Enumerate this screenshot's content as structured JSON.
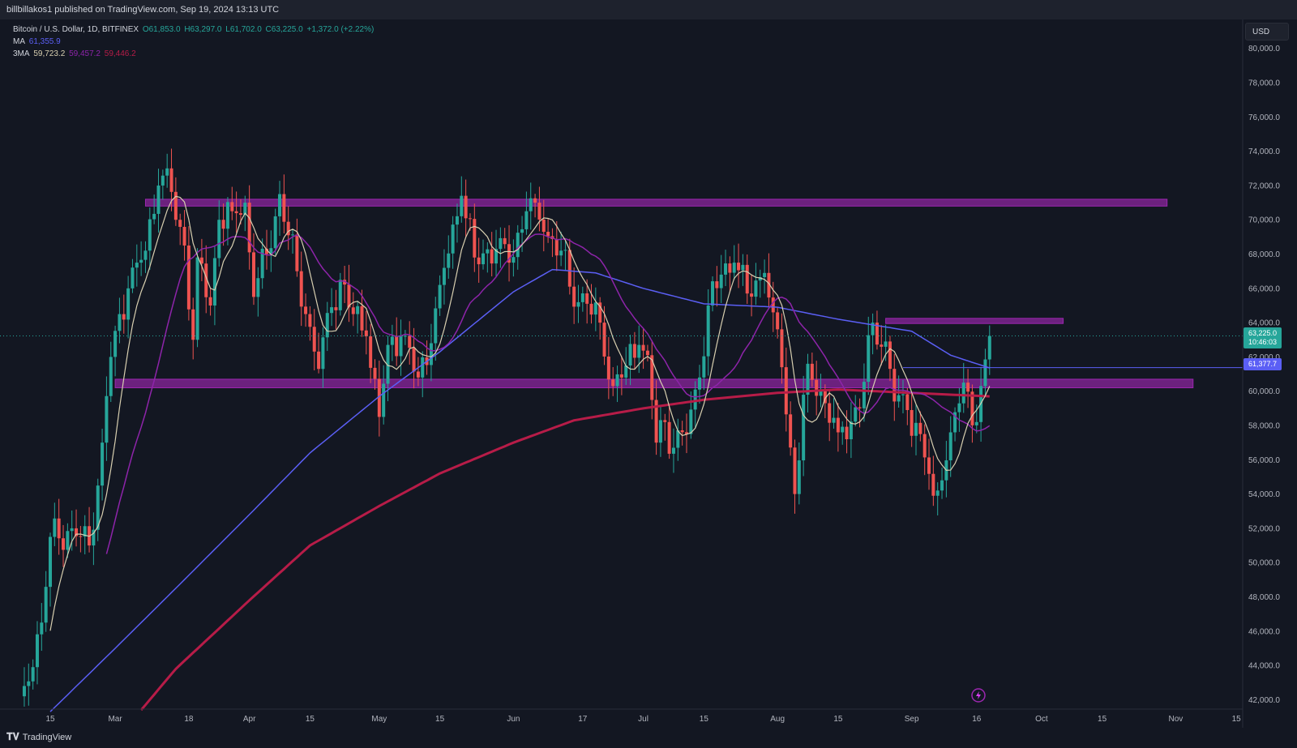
{
  "header": {
    "published": "billbillakos1 published on TradingView.com, Sep 19, 2024 13:13 UTC"
  },
  "legend": {
    "symbol": "Bitcoin / U.S. Dollar, 1D, BITFINEX",
    "o": "O61,853.0",
    "h": "H63,297.0",
    "l": "L61,702.0",
    "c": "C63,225.0",
    "change": "+1,372.0 (+2.22%)",
    "ma_label": "MA",
    "ma_value": "61,355.9",
    "ma3_label": "3MA",
    "ma3_v1": "59,723.2",
    "ma3_v2": "59,457.2",
    "ma3_v3": "59,446.2"
  },
  "axis": {
    "currency": "USD"
  },
  "price_tags": {
    "last": "63,225.0",
    "countdown": "10:46:03",
    "level": "61,377.7"
  },
  "brand": {
    "name": "TradingView"
  },
  "colors": {
    "bg": "#131722",
    "up": "#26a69a",
    "down": "#ef5350",
    "zone": "#9c27b0",
    "ma": "#5b5ff5",
    "ma_fast": "#d8cfb0",
    "ma_mid": "#8e24aa",
    "ma_slow": "#b71c48"
  },
  "chart_data": {
    "type": "candlestick",
    "title": "Bitcoin / U.S. Dollar, 1D, BITFINEX",
    "ylim": [
      41500,
      81500
    ],
    "y_ticks": [
      "42,000.0",
      "44,000.0",
      "46,000.0",
      "48,000.0",
      "50,000.0",
      "52,000.0",
      "54,000.0",
      "56,000.0",
      "58,000.0",
      "60,000.0",
      "62,000.0",
      "64,000.0",
      "66,000.0",
      "68,000.0",
      "70,000.0",
      "72,000.0",
      "74,000.0",
      "76,000.0",
      "78,000.0",
      "80,000.0"
    ],
    "x_ticks": [
      {
        "label": "15",
        "date": "2024-02-15"
      },
      {
        "label": "Mar",
        "date": "2024-03-01"
      },
      {
        "label": "18",
        "date": "2024-03-18"
      },
      {
        "label": "Apr",
        "date": "2024-04-01"
      },
      {
        "label": "15",
        "date": "2024-04-15"
      },
      {
        "label": "May",
        "date": "2024-05-01"
      },
      {
        "label": "15",
        "date": "2024-05-15"
      },
      {
        "label": "Jun",
        "date": "2024-06-01"
      },
      {
        "label": "17",
        "date": "2024-06-17"
      },
      {
        "label": "Jul",
        "date": "2024-07-01"
      },
      {
        "label": "15",
        "date": "2024-07-15"
      },
      {
        "label": "Aug",
        "date": "2024-08-01"
      },
      {
        "label": "15",
        "date": "2024-08-15"
      },
      {
        "label": "Sep",
        "date": "2024-09-01"
      },
      {
        "label": "16",
        "date": "2024-09-16"
      },
      {
        "label": "Oct",
        "date": "2024-10-01"
      },
      {
        "label": "15",
        "date": "2024-10-15"
      },
      {
        "label": "Nov",
        "date": "2024-11-01"
      },
      {
        "label": "15",
        "date": "2024-11-15"
      }
    ],
    "zones": [
      {
        "from": "2024-03-08",
        "to": "2024-10-30",
        "low": 70800,
        "high": 71200
      },
      {
        "from": "2024-03-01",
        "to": "2024-11-05",
        "low": 60200,
        "high": 60700
      },
      {
        "from": "2024-08-26",
        "to": "2024-10-06",
        "low": 63950,
        "high": 64250
      }
    ],
    "hlines": [
      {
        "from": "2024-08-30",
        "price": 61377.7
      }
    ],
    "close_anchors": [
      [
        "2024-02-09",
        42800
      ],
      [
        "2024-02-13",
        46500
      ],
      [
        "2024-02-15",
        51500
      ],
      [
        "2024-02-20",
        52000
      ],
      [
        "2024-02-24",
        51000
      ],
      [
        "2024-02-27",
        57000
      ],
      [
        "2024-02-29",
        62000
      ],
      [
        "2024-03-04",
        66000
      ],
      [
        "2024-03-06",
        67500
      ],
      [
        "2024-03-08",
        68200
      ],
      [
        "2024-03-11",
        72000
      ],
      [
        "2024-03-13",
        73000
      ],
      [
        "2024-03-15",
        70000
      ],
      [
        "2024-03-17",
        68500
      ],
      [
        "2024-03-19",
        63000
      ],
      [
        "2024-03-20",
        67800
      ],
      [
        "2024-03-23",
        65000
      ],
      [
        "2024-03-25",
        70000
      ],
      [
        "2024-03-28",
        70500
      ],
      [
        "2024-03-31",
        71000
      ],
      [
        "2024-04-02",
        65500
      ],
      [
        "2024-04-05",
        68000
      ],
      [
        "2024-04-08",
        71500
      ],
      [
        "2024-04-12",
        67000
      ],
      [
        "2024-04-14",
        64500
      ],
      [
        "2024-04-17",
        61300
      ],
      [
        "2024-04-20",
        64900
      ],
      [
        "2024-04-22",
        66500
      ],
      [
        "2024-04-25",
        64500
      ],
      [
        "2024-04-28",
        63200
      ],
      [
        "2024-05-01",
        58500
      ],
      [
        "2024-05-03",
        62700
      ],
      [
        "2024-05-06",
        63200
      ],
      [
        "2024-05-10",
        60800
      ],
      [
        "2024-05-13",
        62800
      ],
      [
        "2024-05-15",
        66200
      ],
      [
        "2024-05-20",
        71400
      ],
      [
        "2024-05-23",
        67800
      ],
      [
        "2024-05-28",
        68300
      ],
      [
        "2024-05-31",
        67500
      ],
      [
        "2024-06-04",
        70500
      ],
      [
        "2024-06-06",
        71000
      ],
      [
        "2024-06-08",
        69300
      ],
      [
        "2024-06-12",
        68200
      ],
      [
        "2024-06-14",
        66100
      ],
      [
        "2024-06-18",
        65100
      ],
      [
        "2024-06-21",
        64000
      ],
      [
        "2024-06-24",
        60300
      ],
      [
        "2024-06-27",
        61500
      ],
      [
        "2024-06-30",
        62700
      ],
      [
        "2024-07-02",
        62100
      ],
      [
        "2024-07-04",
        57000
      ],
      [
        "2024-07-06",
        58200
      ],
      [
        "2024-07-08",
        56700
      ],
      [
        "2024-07-11",
        57500
      ],
      [
        "2024-07-14",
        60800
      ],
      [
        "2024-07-16",
        65000
      ],
      [
        "2024-07-19",
        66800
      ],
      [
        "2024-07-22",
        67500
      ],
      [
        "2024-07-25",
        65700
      ],
      [
        "2024-07-29",
        66900
      ],
      [
        "2024-07-31",
        64600
      ],
      [
        "2024-08-02",
        61400
      ],
      [
        "2024-08-05",
        54000
      ],
      [
        "2024-08-08",
        61600
      ],
      [
        "2024-08-12",
        59300
      ],
      [
        "2024-08-15",
        57600
      ],
      [
        "2024-08-20",
        59000
      ],
      [
        "2024-08-23",
        64000
      ],
      [
        "2024-08-26",
        62900
      ],
      [
        "2024-08-28",
        59400
      ],
      [
        "2024-08-31",
        58900
      ],
      [
        "2024-09-03",
        57500
      ],
      [
        "2024-09-06",
        53900
      ],
      [
        "2024-09-08",
        54800
      ],
      [
        "2024-09-10",
        57600
      ],
      [
        "2024-09-13",
        60500
      ],
      [
        "2024-09-16",
        58200
      ],
      [
        "2024-09-17",
        60300
      ],
      [
        "2024-09-18",
        61853
      ],
      [
        "2024-09-19",
        63225
      ]
    ],
    "ma_200_anchors": [
      [
        "2024-03-07",
        41400
      ],
      [
        "2024-03-15",
        43800
      ],
      [
        "2024-04-01",
        47800
      ],
      [
        "2024-04-15",
        51000
      ],
      [
        "2024-05-01",
        53300
      ],
      [
        "2024-05-15",
        55200
      ],
      [
        "2024-06-01",
        57000
      ],
      [
        "2024-06-15",
        58300
      ],
      [
        "2024-07-01",
        59000
      ],
      [
        "2024-07-15",
        59500
      ],
      [
        "2024-08-01",
        59900
      ],
      [
        "2024-08-15",
        60100
      ],
      [
        "2024-09-01",
        59900
      ],
      [
        "2024-09-19",
        59700
      ]
    ],
    "ma_100_anchors": [
      [
        "2024-02-15",
        41300
      ],
      [
        "2024-03-01",
        45000
      ],
      [
        "2024-03-15",
        48500
      ],
      [
        "2024-04-01",
        52800
      ],
      [
        "2024-04-15",
        56400
      ],
      [
        "2024-05-01",
        59700
      ],
      [
        "2024-05-15",
        62300
      ],
      [
        "2024-06-01",
        65800
      ],
      [
        "2024-06-10",
        67100
      ],
      [
        "2024-06-20",
        66900
      ],
      [
        "2024-07-01",
        66000
      ],
      [
        "2024-07-15",
        65100
      ],
      [
        "2024-08-01",
        64900
      ],
      [
        "2024-08-15",
        64200
      ],
      [
        "2024-09-01",
        63500
      ],
      [
        "2024-09-10",
        62100
      ],
      [
        "2024-09-19",
        61356
      ]
    ]
  }
}
